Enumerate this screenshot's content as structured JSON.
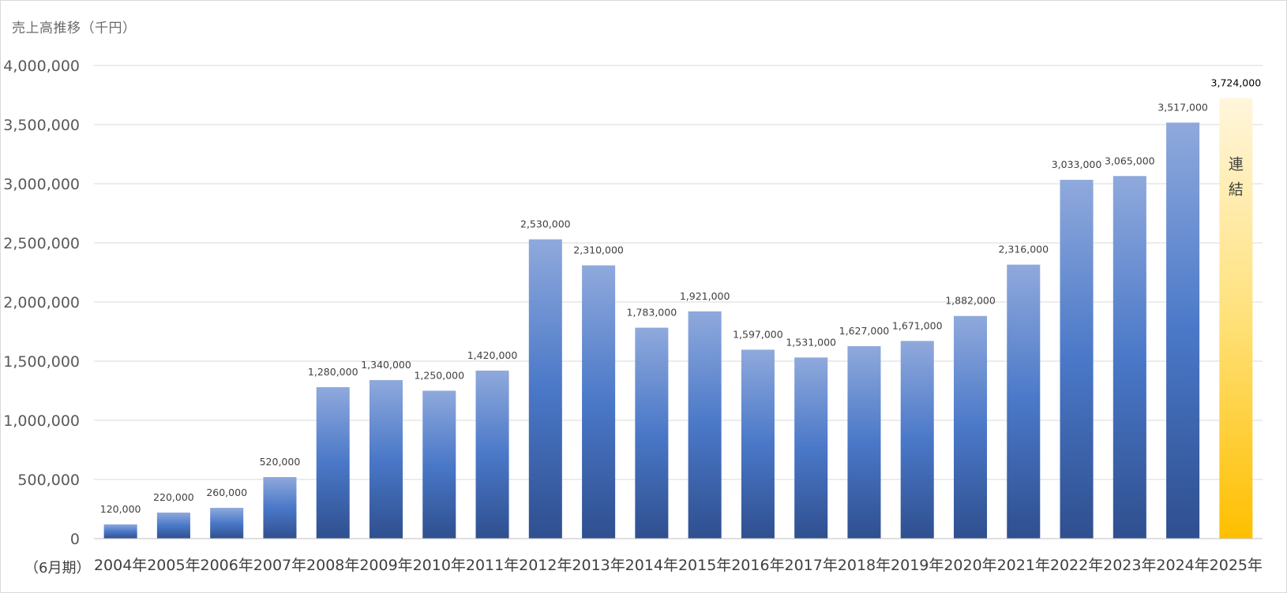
{
  "chart_data": {
    "type": "bar",
    "title": "売上高推移（千円）",
    "period_note": "（6月期）",
    "categories": [
      "2004年",
      "2005年",
      "2006年",
      "2007年",
      "2008年",
      "2009年",
      "2010年",
      "2011年",
      "2012年",
      "2013年",
      "2014年",
      "2015年",
      "2016年",
      "2017年",
      "2018年",
      "2019年",
      "2020年",
      "2021年",
      "2022年",
      "2023年",
      "2024年",
      "2025年"
    ],
    "values": [
      120000,
      220000,
      260000,
      520000,
      1280000,
      1340000,
      1250000,
      1420000,
      2530000,
      2310000,
      1783000,
      1921000,
      1597000,
      1531000,
      1627000,
      1671000,
      1882000,
      2316000,
      3033000,
      3065000,
      3517000,
      3724000
    ],
    "data_labels": [
      "120,000",
      "220,000",
      "260,000",
      "520,000",
      "1,280,000",
      "1,340,000",
      "1,250,000",
      "1,420,000",
      "2,530,000",
      "2,310,000",
      "1,783,000",
      "1,921,000",
      "1,597,000",
      "1,531,000",
      "1,627,000",
      "1,671,000",
      "1,882,000",
      "2,316,000",
      "3,033,000",
      "3,065,000",
      "3,517,000",
      "3,724,000"
    ],
    "y_ticks": [
      0,
      500000,
      1000000,
      1500000,
      2000000,
      2500000,
      3000000,
      3500000,
      4000000
    ],
    "y_tick_labels": [
      "0",
      "500,000",
      "1,000,000",
      "1,500,000",
      "2,000,000",
      "2,500,000",
      "3,000,000",
      "3,500,000",
      "4,000,000"
    ],
    "ylim": [
      0,
      4000000
    ],
    "grid": true,
    "highlight_index": 21,
    "highlight_note": [
      "連",
      "結"
    ],
    "colors": {
      "bar_top": "#8fa9dc",
      "bar_mid": "#4a78c8",
      "bar_bottom": "#2f4f8f",
      "highlight_top": "#fff6dc",
      "highlight_mid": "#ffe17a",
      "highlight_bottom": "#ffbf00",
      "grid": "#d9d9d9"
    }
  }
}
